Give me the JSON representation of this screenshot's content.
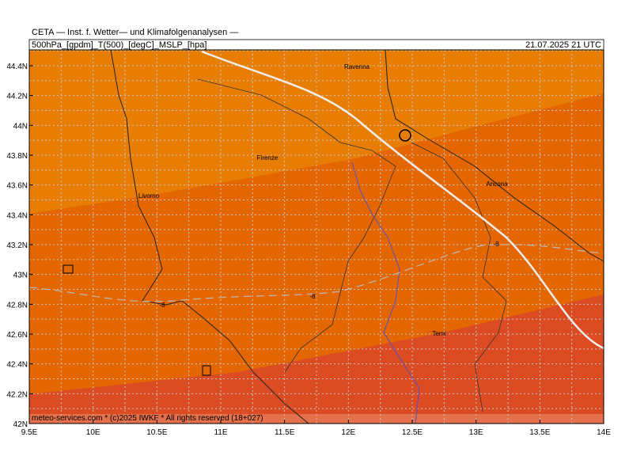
{
  "header": {
    "source": "CETA — Inst. f. Wetter— und Klimafolgenanalysen —",
    "fields": "500hPa_[gpdm]_T(500)_[degC]_MSLP_[hpa]",
    "valid": "21.07.2025 21 UTC"
  },
  "x_axis": {
    "labels": [
      "9.5E",
      "10E",
      "10.5E",
      "11E",
      "11.5E",
      "12E",
      "12.5E",
      "13E",
      "13.5E",
      "14E"
    ]
  },
  "y_axis": {
    "labels": [
      "44.4N",
      "44.2N",
      "44N",
      "43.8N",
      "43.6N",
      "43.4N",
      "43.2N",
      "43N",
      "42.8N",
      "42.6N",
      "42.4N",
      "42.2N",
      "42N"
    ]
  },
  "cities": [
    "Ravenna",
    "Firenze",
    "Livorno",
    "Ancona",
    "Terni"
  ],
  "contour_labels": [
    "-8",
    "-8",
    "-8"
  ],
  "footer": "meteo-services.com * (c)2025 IWKF * All rights reserved (18+027)"
}
